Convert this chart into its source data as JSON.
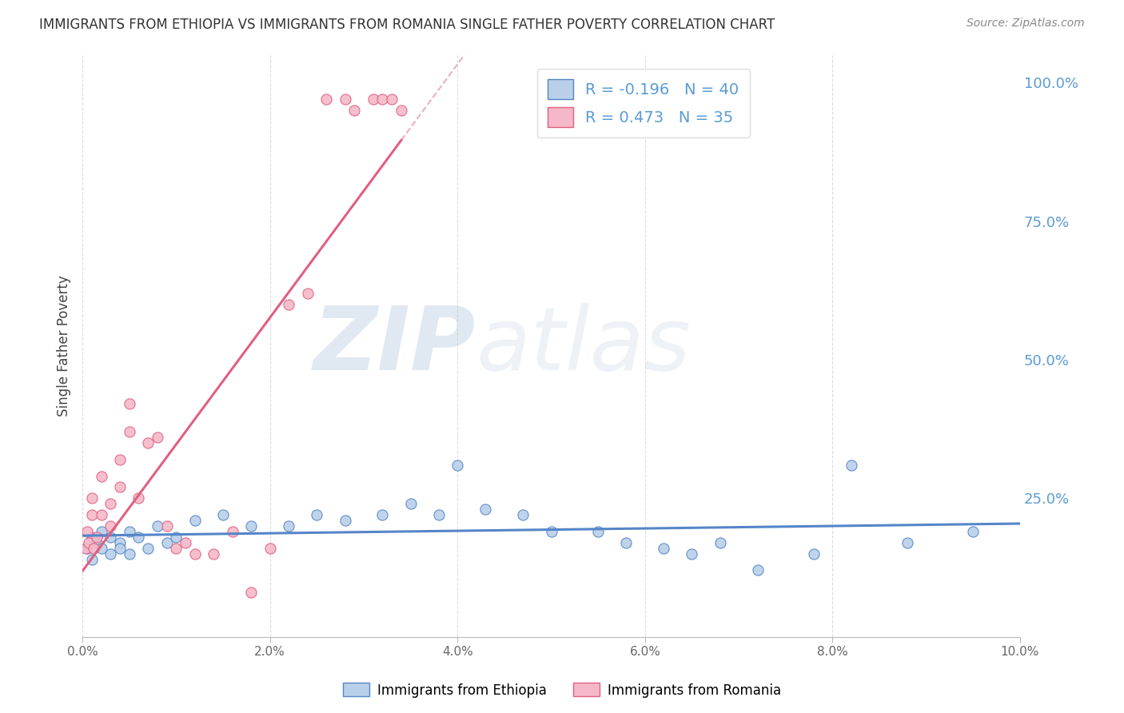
{
  "title": "IMMIGRANTS FROM ETHIOPIA VS IMMIGRANTS FROM ROMANIA SINGLE FATHER POVERTY CORRELATION CHART",
  "source": "Source: ZipAtlas.com",
  "ylabel": "Single Father Poverty",
  "watermark_zip": "ZIP",
  "watermark_atlas": "atlas",
  "legend_ethiopia": "Immigrants from Ethiopia",
  "legend_romania": "Immigrants from Romania",
  "r_ethiopia": -0.196,
  "n_ethiopia": 40,
  "r_romania": 0.473,
  "n_romania": 35,
  "ethiopia_color": "#b8d0e8",
  "romania_color": "#f5b8c8",
  "ethiopia_line_color": "#5585c8",
  "romania_line_color": "#e06080",
  "right_axis_color": "#5b9bd5",
  "title_color": "#333333",
  "ethiopia_x": [
    0.0005,
    0.001,
    0.001,
    0.0015,
    0.002,
    0.002,
    0.003,
    0.003,
    0.004,
    0.004,
    0.005,
    0.005,
    0.006,
    0.007,
    0.008,
    0.009,
    0.01,
    0.012,
    0.015,
    0.018,
    0.022,
    0.025,
    0.028,
    0.032,
    0.035,
    0.038,
    0.04,
    0.043,
    0.047,
    0.05,
    0.055,
    0.058,
    0.062,
    0.065,
    0.068,
    0.072,
    0.078,
    0.082,
    0.088,
    0.095
  ],
  "ethiopia_y": [
    0.16,
    0.18,
    0.14,
    0.17,
    0.16,
    0.19,
    0.15,
    0.18,
    0.17,
    0.16,
    0.15,
    0.19,
    0.18,
    0.16,
    0.2,
    0.17,
    0.18,
    0.21,
    0.22,
    0.2,
    0.2,
    0.22,
    0.21,
    0.22,
    0.24,
    0.22,
    0.31,
    0.23,
    0.22,
    0.19,
    0.19,
    0.17,
    0.16,
    0.15,
    0.17,
    0.12,
    0.15,
    0.31,
    0.17,
    0.19
  ],
  "romania_x": [
    0.0003,
    0.0005,
    0.0007,
    0.001,
    0.001,
    0.0012,
    0.0015,
    0.002,
    0.002,
    0.003,
    0.003,
    0.004,
    0.004,
    0.005,
    0.005,
    0.006,
    0.007,
    0.008,
    0.009,
    0.01,
    0.011,
    0.012,
    0.014,
    0.016,
    0.018,
    0.02,
    0.022,
    0.024,
    0.026,
    0.028,
    0.029,
    0.031,
    0.032,
    0.033,
    0.034
  ],
  "romania_y": [
    0.16,
    0.19,
    0.17,
    0.22,
    0.25,
    0.16,
    0.18,
    0.29,
    0.22,
    0.24,
    0.2,
    0.27,
    0.32,
    0.37,
    0.42,
    0.25,
    0.35,
    0.36,
    0.2,
    0.16,
    0.17,
    0.15,
    0.15,
    0.19,
    0.08,
    0.16,
    0.6,
    0.62,
    0.97,
    0.97,
    0.95,
    0.97,
    0.97,
    0.97,
    0.95
  ],
  "xlim": [
    0.0,
    0.1
  ],
  "ylim": [
    0.0,
    1.05
  ],
  "xtick_labels": [
    "0.0%",
    "2.0%",
    "4.0%",
    "6.0%",
    "8.0%",
    "10.0%"
  ],
  "xtick_positions": [
    0.0,
    0.02,
    0.04,
    0.06,
    0.08,
    0.1
  ],
  "ytick_positions": [
    0.25,
    0.5,
    0.75,
    1.0
  ],
  "ytick_labels": [
    "25.0%",
    "50.0%",
    "75.0%",
    "100.0%"
  ],
  "grid_color": "#cccccc",
  "background_color": "#ffffff",
  "marker_size": 90
}
